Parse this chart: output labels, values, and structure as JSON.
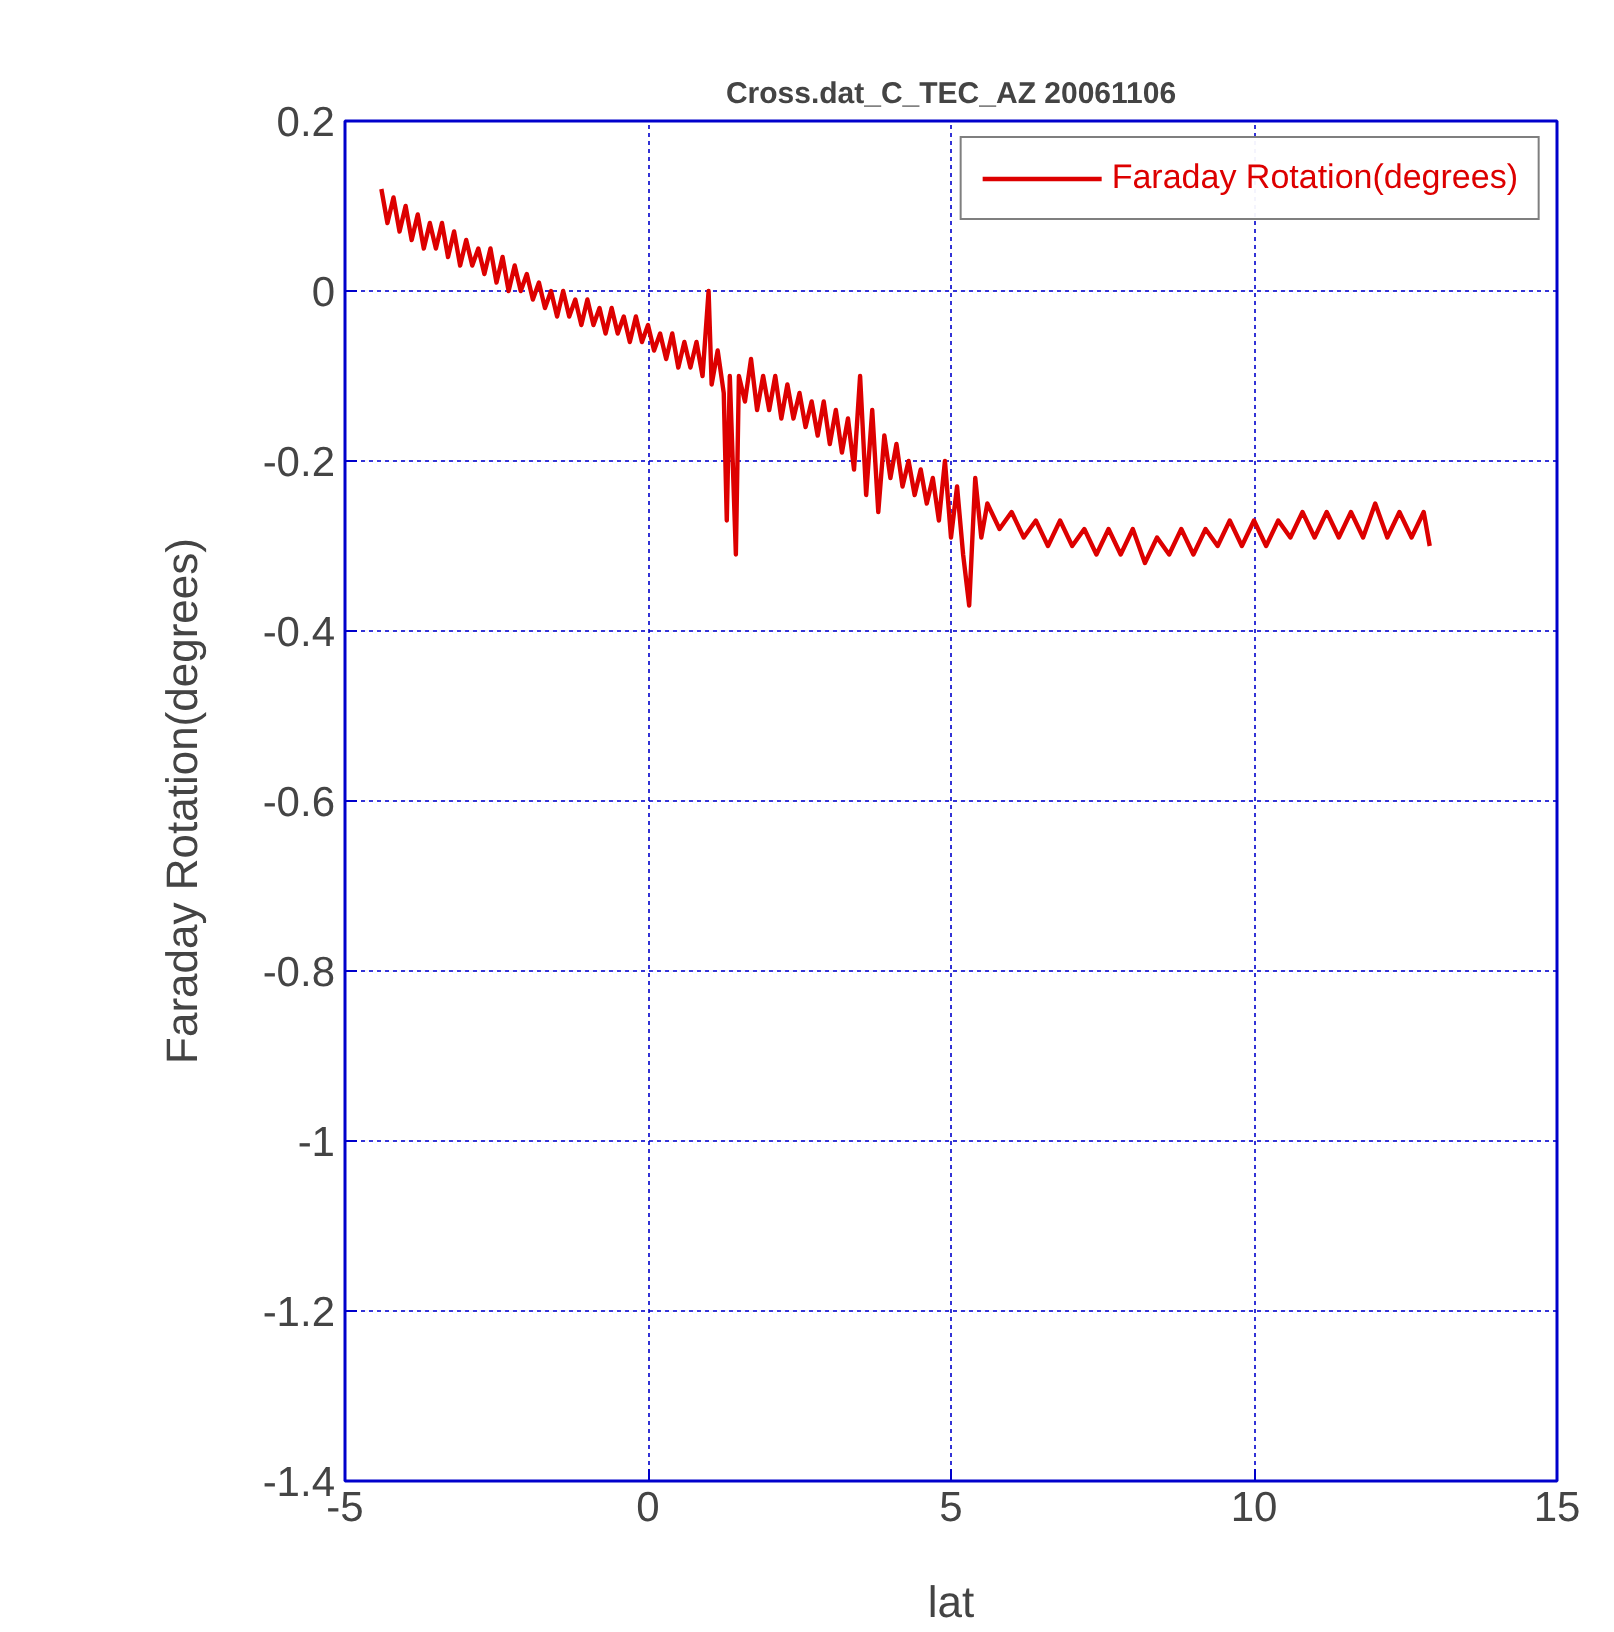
{
  "chart_data": {
    "type": "line",
    "title": "Cross.dat_C_TEC_AZ 20061106",
    "xlabel": "lat",
    "ylabel": "Faraday Rotation(degrees)",
    "xlim": [
      -5,
      15
    ],
    "xticks": [
      -5,
      0,
      5,
      10,
      15
    ],
    "ylim": [
      -1.4,
      0.2
    ],
    "yticks": [
      -1.4,
      -1.2,
      -1,
      -0.8,
      -0.6,
      -0.4,
      -0.2,
      0,
      0.2
    ],
    "grid": true,
    "legend": "top right",
    "line_style": "solid",
    "series": [
      {
        "name": "Faraday Rotation(degrees)",
        "color": "#dd0000",
        "x": [
          -4.4,
          -4.3,
          -4.2,
          -4.1,
          -4.0,
          -3.9,
          -3.8,
          -3.7,
          -3.6,
          -3.5,
          -3.4,
          -3.3,
          -3.2,
          -3.1,
          -3.0,
          -2.9,
          -2.8,
          -2.7,
          -2.6,
          -2.5,
          -2.4,
          -2.3,
          -2.2,
          -2.1,
          -2.0,
          -1.9,
          -1.8,
          -1.7,
          -1.6,
          -1.5,
          -1.4,
          -1.3,
          -1.2,
          -1.1,
          -1.0,
          -0.9,
          -0.8,
          -0.7,
          -0.6,
          -0.5,
          -0.4,
          -0.3,
          -0.2,
          -0.1,
          0.0,
          0.1,
          0.2,
          0.3,
          0.4,
          0.5,
          0.6,
          0.7,
          0.8,
          0.9,
          1.0,
          1.05,
          1.15,
          1.25,
          1.3,
          1.35,
          1.45,
          1.5,
          1.6,
          1.7,
          1.8,
          1.9,
          2.0,
          2.1,
          2.2,
          2.3,
          2.4,
          2.5,
          2.6,
          2.7,
          2.8,
          2.9,
          3.0,
          3.1,
          3.2,
          3.3,
          3.4,
          3.5,
          3.6,
          3.7,
          3.8,
          3.9,
          4.0,
          4.1,
          4.2,
          4.3,
          4.4,
          4.5,
          4.6,
          4.7,
          4.8,
          4.9,
          5.0,
          5.1,
          5.2,
          5.3,
          5.4,
          5.5,
          5.6,
          5.8,
          6.0,
          6.2,
          6.4,
          6.6,
          6.8,
          7.0,
          7.2,
          7.4,
          7.6,
          7.8,
          8.0,
          8.2,
          8.4,
          8.6,
          8.8,
          9.0,
          9.2,
          9.4,
          9.6,
          9.8,
          10.0,
          10.2,
          10.4,
          10.6,
          10.8,
          11.0,
          11.2,
          11.4,
          11.6,
          11.8,
          12.0,
          12.2,
          12.4,
          12.6,
          12.8,
          12.9
        ],
        "values": [
          0.12,
          0.08,
          0.11,
          0.07,
          0.1,
          0.06,
          0.09,
          0.05,
          0.08,
          0.05,
          0.08,
          0.04,
          0.07,
          0.03,
          0.06,
          0.03,
          0.05,
          0.02,
          0.05,
          0.01,
          0.04,
          0.0,
          0.03,
          0.0,
          0.02,
          -0.01,
          0.01,
          -0.02,
          0.0,
          -0.03,
          0.0,
          -0.03,
          -0.01,
          -0.04,
          -0.01,
          -0.04,
          -0.02,
          -0.05,
          -0.02,
          -0.05,
          -0.03,
          -0.06,
          -0.03,
          -0.06,
          -0.04,
          -0.07,
          -0.05,
          -0.08,
          -0.05,
          -0.09,
          -0.06,
          -0.09,
          -0.06,
          -0.1,
          0.0,
          -0.11,
          -0.07,
          -0.12,
          -0.27,
          -0.1,
          -0.31,
          -0.1,
          -0.13,
          -0.08,
          -0.14,
          -0.1,
          -0.14,
          -0.1,
          -0.15,
          -0.11,
          -0.15,
          -0.12,
          -0.16,
          -0.13,
          -0.17,
          -0.13,
          -0.18,
          -0.14,
          -0.19,
          -0.15,
          -0.21,
          -0.1,
          -0.24,
          -0.14,
          -0.26,
          -0.17,
          -0.22,
          -0.18,
          -0.23,
          -0.2,
          -0.24,
          -0.21,
          -0.25,
          -0.22,
          -0.27,
          -0.2,
          -0.29,
          -0.23,
          -0.31,
          -0.37,
          -0.22,
          -0.29,
          -0.25,
          -0.28,
          -0.26,
          -0.29,
          -0.27,
          -0.3,
          -0.27,
          -0.3,
          -0.28,
          -0.31,
          -0.28,
          -0.31,
          -0.28,
          -0.32,
          -0.29,
          -0.31,
          -0.28,
          -0.31,
          -0.28,
          -0.3,
          -0.27,
          -0.3,
          -0.27,
          -0.3,
          -0.27,
          -0.29,
          -0.26,
          -0.29,
          -0.26,
          -0.29,
          -0.26,
          -0.29,
          -0.25,
          -0.29,
          -0.26,
          -0.29,
          -0.26,
          -0.3
        ]
      }
    ]
  }
}
